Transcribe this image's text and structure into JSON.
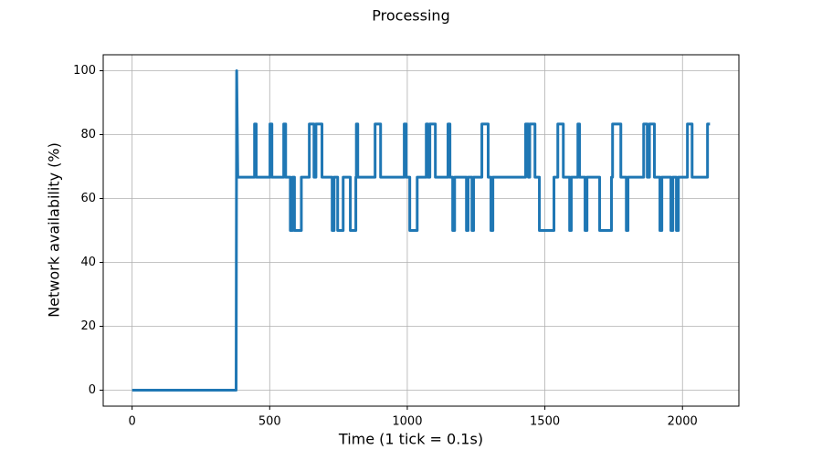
{
  "chart_data": {
    "type": "line",
    "title": "Processing",
    "x_label": "Time (1 tick = 0.1s)",
    "y_label": "Network availability (%)",
    "xlim": [
      -105,
      2205
    ],
    "ylim": [
      -5,
      105
    ],
    "xticks": [
      0,
      500,
      1000,
      1500,
      2000
    ],
    "yticks": [
      0,
      20,
      40,
      60,
      80,
      100
    ],
    "grid": true,
    "series": [
      {
        "color": "#1f77b4",
        "x": [
          0,
          378,
          380,
          382,
          384,
          445,
          445,
          451,
          451,
          501,
          501,
          508,
          508,
          551,
          551,
          558,
          558,
          575,
          575,
          583,
          583,
          590,
          590,
          615,
          615,
          644,
          644,
          661,
          661,
          668,
          668,
          690,
          690,
          727,
          727,
          734,
          734,
          747,
          747,
          767,
          767,
          793,
          793,
          813,
          813,
          815,
          815,
          820,
          820,
          883,
          883,
          903,
          903,
          989,
          989,
          996,
          996,
          1009,
          1009,
          1036,
          1036,
          1069,
          1069,
          1075,
          1075,
          1082,
          1082,
          1102,
          1102,
          1148,
          1148,
          1155,
          1155,
          1165,
          1165,
          1172,
          1172,
          1215,
          1215,
          1221,
          1221,
          1235,
          1235,
          1241,
          1241,
          1271,
          1271,
          1294,
          1294,
          1304,
          1304,
          1311,
          1311,
          1430,
          1430,
          1440,
          1440,
          1445,
          1445,
          1464,
          1464,
          1480,
          1480,
          1533,
          1533,
          1547,
          1547,
          1567,
          1567,
          1590,
          1590,
          1596,
          1596,
          1620,
          1620,
          1626,
          1626,
          1646,
          1646,
          1653,
          1653,
          1699,
          1699,
          1742,
          1742,
          1746,
          1746,
          1776,
          1776,
          1796,
          1796,
          1802,
          1802,
          1859,
          1859,
          1872,
          1872,
          1880,
          1880,
          1898,
          1898,
          1918,
          1918,
          1925,
          1925,
          1958,
          1958,
          1965,
          1965,
          1978,
          1978,
          1985,
          1985,
          2018,
          2018,
          2035,
          2035,
          2091,
          2091,
          2100
        ],
        "values": [
          0,
          0,
          100,
          83.33,
          66.67,
          66.67,
          83.33,
          83.33,
          66.67,
          66.67,
          83.33,
          83.33,
          66.67,
          66.67,
          83.33,
          83.33,
          66.67,
          66.67,
          50,
          50,
          66.67,
          66.67,
          50,
          50,
          66.67,
          66.67,
          83.33,
          83.33,
          66.67,
          66.67,
          83.33,
          83.33,
          66.67,
          66.67,
          50,
          50,
          66.67,
          66.67,
          50,
          50,
          66.67,
          66.67,
          50,
          50,
          66.67,
          66.67,
          83.33,
          83.33,
          66.67,
          66.67,
          83.33,
          83.33,
          66.67,
          66.67,
          83.33,
          83.33,
          66.67,
          66.67,
          50,
          50,
          66.67,
          66.67,
          83.33,
          83.33,
          66.67,
          66.67,
          83.33,
          83.33,
          66.67,
          66.67,
          83.33,
          83.33,
          66.67,
          66.67,
          50,
          50,
          66.67,
          66.67,
          50,
          50,
          66.67,
          66.67,
          50,
          50,
          66.67,
          66.67,
          83.33,
          83.33,
          66.67,
          66.67,
          50,
          50,
          66.67,
          66.67,
          83.33,
          83.33,
          66.67,
          66.67,
          83.33,
          83.33,
          66.67,
          66.67,
          50,
          50,
          66.67,
          66.67,
          83.33,
          83.33,
          66.67,
          66.67,
          50,
          50,
          66.67,
          66.67,
          83.33,
          83.33,
          66.67,
          66.67,
          50,
          50,
          66.67,
          66.67,
          50,
          50,
          66.67,
          66.67,
          83.33,
          83.33,
          66.67,
          66.67,
          50,
          50,
          66.67,
          66.67,
          83.33,
          83.33,
          66.67,
          66.67,
          83.33,
          83.33,
          66.67,
          66.67,
          50,
          50,
          66.67,
          66.67,
          50,
          50,
          66.67,
          66.67,
          50,
          50,
          66.67,
          66.67,
          83.33,
          83.33,
          66.67,
          66.67,
          83.33,
          83.33
        ]
      }
    ]
  }
}
